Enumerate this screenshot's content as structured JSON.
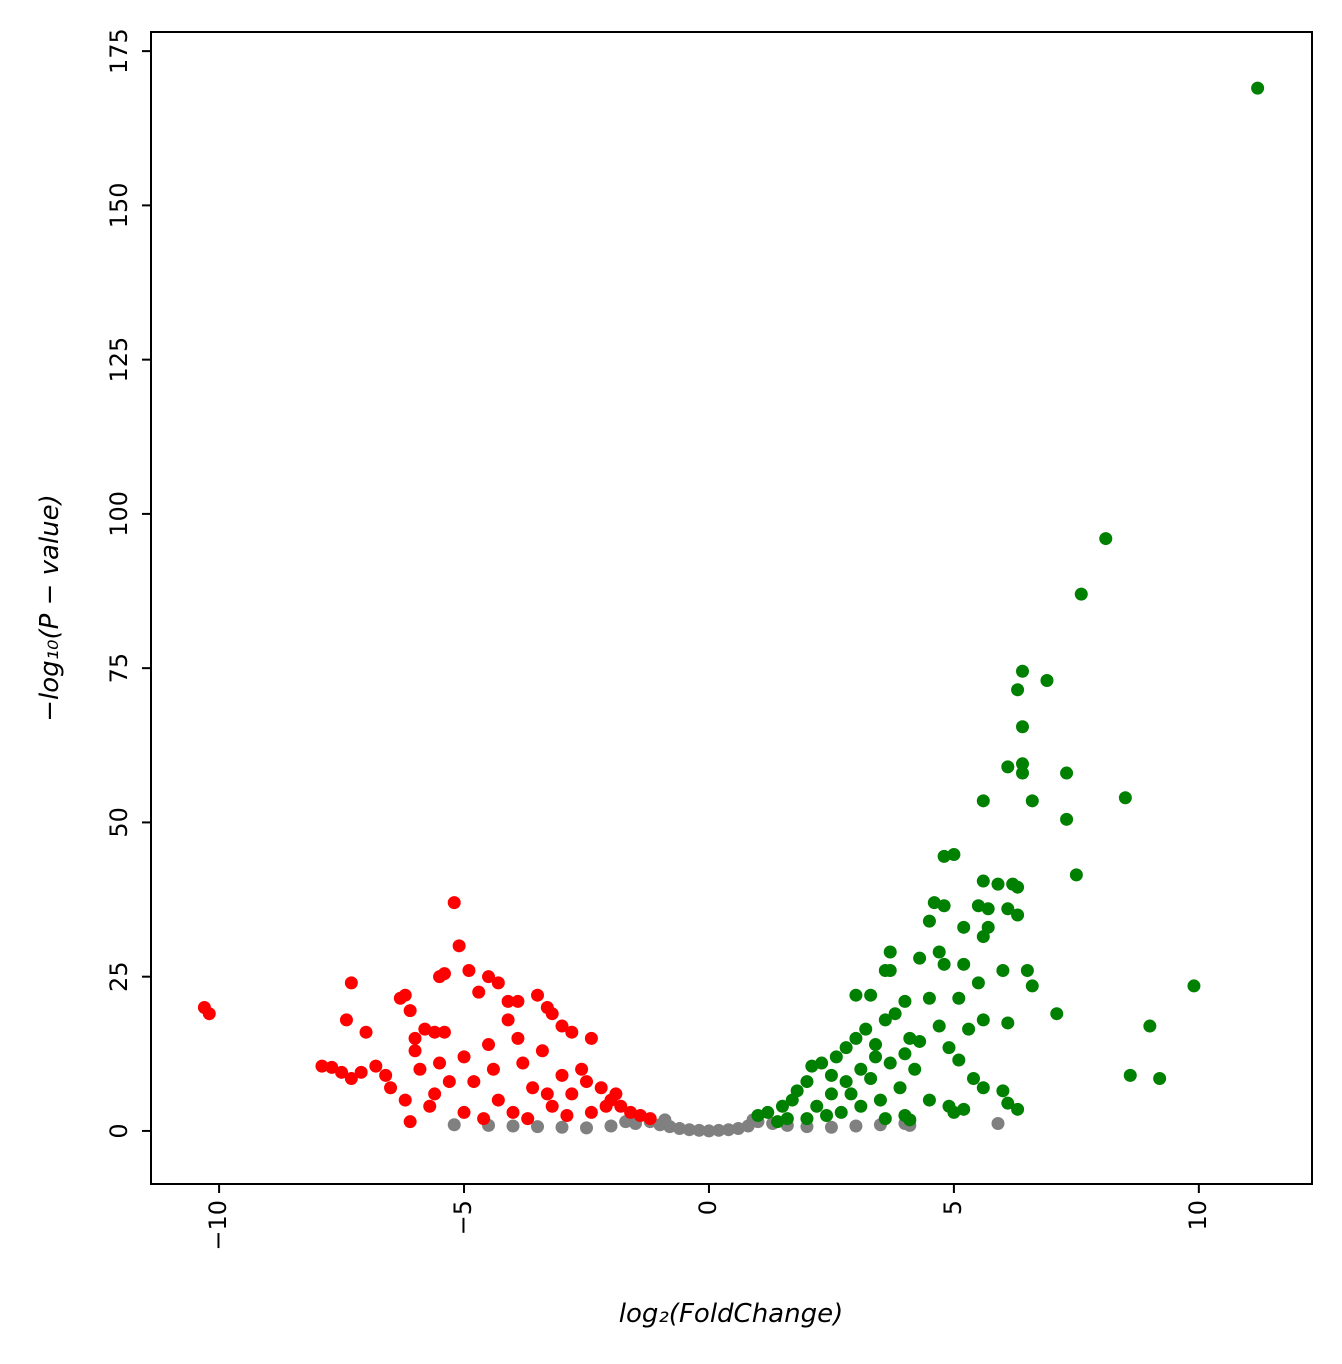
{
  "chart_data": {
    "type": "scatter",
    "xlabel": "log₂(FoldChange)",
    "ylabel": "−log₁₀(P − value)",
    "xlim": [
      -11.39,
      12.31
    ],
    "ylim": [
      -8.6,
      178.1
    ],
    "xticks": [
      {
        "value": -10,
        "label": "−10"
      },
      {
        "value": -5,
        "label": "−5"
      },
      0,
      5,
      10
    ],
    "yticks": [
      0,
      25,
      50,
      75,
      100,
      125,
      150,
      175
    ],
    "grid": false,
    "series": [
      {
        "color": "#808080",
        "x": [
          -5.2,
          -4.5,
          -4,
          -3.5,
          -3,
          -2.5,
          -2,
          -1.5,
          -1.2,
          -1,
          -0.8,
          -0.6,
          -0.4,
          -0.2,
          0,
          0.2,
          0.4,
          0.6,
          0.8,
          1,
          1.3,
          1.6,
          2,
          2.5,
          3,
          3.5,
          4,
          4.1,
          5.9,
          -1.7,
          0.9,
          -0.9
        ],
        "values": [
          1,
          0.9,
          0.8,
          0.7,
          0.6,
          0.5,
          0.8,
          1.2,
          1.5,
          1,
          0.7,
          0.4,
          0.2,
          0.1,
          0,
          0.1,
          0.2,
          0.4,
          0.8,
          1.5,
          1.2,
          0.9,
          0.7,
          0.6,
          0.8,
          1,
          1.2,
          0.9,
          1.2,
          1.5,
          1.8,
          1.8
        ]
      },
      {
        "color": "#ff0000",
        "x": [
          -10.3,
          -10.2,
          -7.3,
          -7.4,
          -7.0,
          -7.9,
          -7.7,
          -7.5,
          -7.3,
          -7.1,
          -6.8,
          -6.6,
          -6.3,
          -6.2,
          -6.1,
          -6.0,
          -5.8,
          -5.6,
          -5.4,
          -5.2,
          -5.1,
          -5.5,
          -5.4,
          -4.9,
          -4.7,
          -4.5,
          -4.3,
          -4.1,
          -3.9,
          -3.5,
          -3.3,
          -3.2,
          -3.0,
          -2.8,
          -2.4,
          -6.1,
          -5.6,
          -5.0,
          -4.8,
          -4.5,
          -4.3,
          -4.1,
          -3.8,
          -3.6,
          -3.4,
          -3.2,
          -3.0,
          -2.8,
          -2.6,
          -2.4,
          -2.2,
          -2.0,
          -1.8,
          -1.6,
          -1.4,
          -1.2,
          -6.5,
          -6.2,
          -5.9,
          -5.7,
          -5.3,
          -4.0,
          -3.7,
          -2.9,
          -5.0,
          -4.6,
          -6.0,
          -5.5,
          -4.4,
          -3.9,
          -3.3,
          -2.5,
          -2.1,
          -1.9
        ],
        "values": [
          20,
          19,
          24,
          18,
          16,
          10.5,
          10.3,
          9.5,
          8.5,
          9.5,
          10.5,
          9,
          21.5,
          22,
          19.5,
          15,
          16.5,
          16,
          16,
          37,
          30,
          25,
          25.5,
          26,
          22.5,
          25,
          24,
          21,
          21,
          22,
          20,
          19,
          17,
          16,
          15,
          1.5,
          6,
          12,
          8,
          14,
          5,
          18,
          11,
          7,
          13,
          4,
          9,
          6,
          10,
          3,
          7,
          5,
          4,
          3,
          2.5,
          2,
          7,
          5,
          10,
          4,
          8,
          3,
          2,
          2.5,
          3,
          2,
          13,
          11,
          10,
          15,
          6,
          8,
          4,
          6
        ]
      },
      {
        "color": "#008000",
        "x": [
          11.2,
          8.1,
          7.6,
          6.4,
          6.9,
          6.3,
          6.4,
          6.1,
          6.4,
          6.4,
          7.3,
          5.6,
          6.6,
          8.5,
          7.3,
          4.8,
          5.0,
          7.5,
          5.6,
          5.9,
          6.2,
          6.3,
          4.6,
          5.5,
          5.7,
          6.1,
          6.3,
          4.8,
          4.5,
          5.7,
          5.2,
          5.6,
          4.7,
          3.7,
          4.8,
          5.2,
          4.3,
          6.0,
          6.5,
          3.6,
          3.7,
          5.5,
          9.9,
          6.6,
          5.1,
          3.0,
          3.3,
          4.5,
          7.1,
          5.6,
          6.1,
          9.0,
          4.7,
          5.3,
          4.9,
          5.1,
          8.6,
          9.2,
          5.4,
          4.9,
          5.2,
          5.0,
          5.6,
          6.0,
          6.1,
          6.3,
          4.5,
          1.0,
          1.2,
          1.5,
          1.7,
          1.8,
          2.0,
          2.1,
          2.3,
          2.5,
          2.6,
          2.8,
          3.0,
          3.2,
          3.4,
          3.6,
          3.8,
          4.0,
          4.1,
          4.2,
          3.9,
          3.5,
          3.1,
          2.7,
          2.4,
          2.2,
          2.9,
          3.3,
          3.7,
          4.0,
          4.3,
          2.0,
          1.4,
          3.6,
          4.0,
          4.1,
          2.5,
          2.8,
          3.1,
          3.4,
          1.6
        ],
        "values": [
          169,
          96,
          87,
          74.5,
          73,
          71.5,
          65.5,
          59,
          59.5,
          58,
          58,
          53.5,
          53.5,
          54,
          50.5,
          44.5,
          44.8,
          41.5,
          40.5,
          40,
          40,
          39.5,
          37,
          36.5,
          36,
          36,
          35,
          36.5,
          34,
          33,
          33,
          31.5,
          29,
          29,
          27,
          27,
          28,
          26,
          26,
          26,
          26,
          24,
          23.5,
          23.5,
          21.5,
          22,
          22,
          21.5,
          19,
          18,
          17.5,
          17,
          17,
          16.5,
          13.5,
          11.5,
          9,
          8.5,
          8.5,
          4,
          3.5,
          3,
          7,
          6.5,
          4.5,
          3.5,
          5,
          2.5,
          3,
          4,
          5,
          6.5,
          8,
          10.5,
          11,
          9,
          12,
          13.5,
          15,
          16.5,
          14,
          18,
          19,
          21,
          15,
          10,
          7,
          5,
          4,
          3,
          2.5,
          4,
          6,
          8.5,
          11,
          12.5,
          14.5,
          2,
          1.5,
          2,
          2.5,
          1.8,
          6,
          8,
          10,
          12,
          2
        ]
      }
    ]
  }
}
